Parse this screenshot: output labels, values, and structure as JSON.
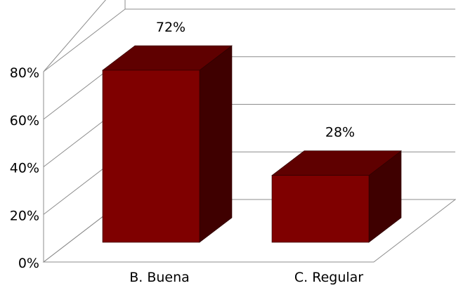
{
  "chart_data": {
    "type": "bar",
    "style": "3d-column",
    "categories": [
      "B. Buena",
      "C. Regular"
    ],
    "values": [
      72,
      28
    ],
    "data_labels": [
      "72%",
      "28%"
    ],
    "ylim": [
      0,
      80
    ],
    "yticks": [
      0,
      20,
      40,
      60,
      80
    ],
    "ytick_labels": [
      "0%",
      "20%",
      "40%",
      "60%",
      "80%"
    ],
    "grid": true,
    "legend": "none",
    "colors": {
      "bar_front": "#7f0000",
      "bar_top": "#5f0000",
      "bar_side": "#3f0000",
      "bar_edge": "#2a0000",
      "grid": "#8c8c8c",
      "text": "#000000"
    }
  }
}
